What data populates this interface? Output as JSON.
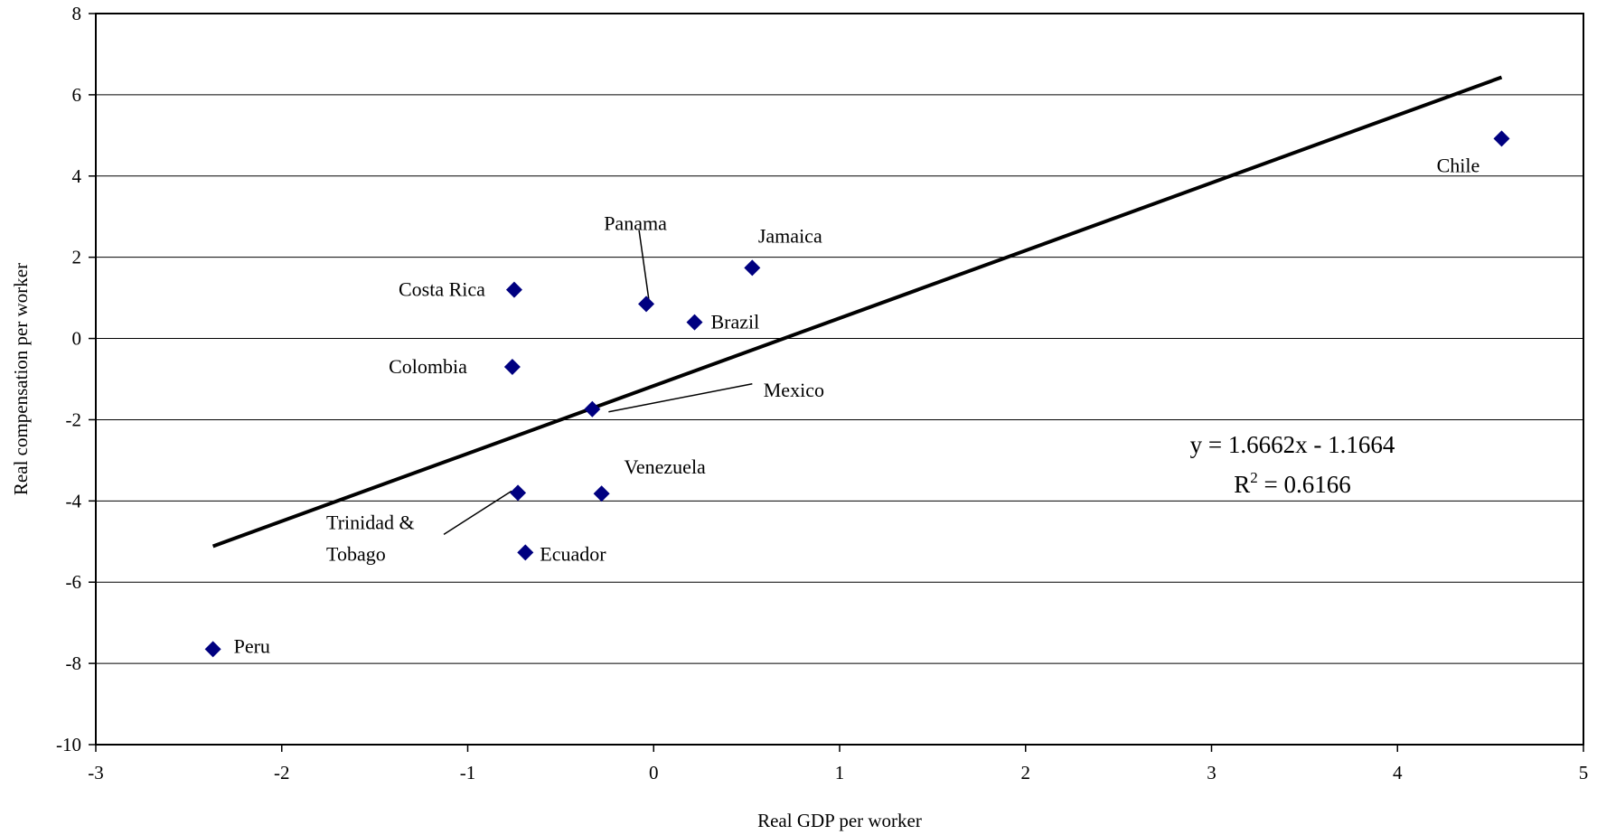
{
  "chart_data": {
    "type": "scatter",
    "title": "",
    "xlabel": "Real GDP per worker",
    "ylabel": "Real compensation per worker",
    "xlim": [
      -3,
      5
    ],
    "ylim": [
      -10,
      8
    ],
    "xticks": [
      -3,
      -2,
      -1,
      0,
      1,
      2,
      3,
      4,
      5
    ],
    "yticks": [
      -10,
      -8,
      -6,
      -4,
      -2,
      0,
      2,
      4,
      6,
      8
    ],
    "grid": "horizontal",
    "marker_color": "#000080",
    "points": [
      {
        "label": "Chile",
        "x": 4.56,
        "y": 4.92
      },
      {
        "label": "Jamaica",
        "x": 0.53,
        "y": 1.74
      },
      {
        "label": "Panama",
        "x": -0.04,
        "y": 0.85
      },
      {
        "label": "Brazil",
        "x": 0.22,
        "y": 0.4
      },
      {
        "label": "Costa Rica",
        "x": -0.75,
        "y": 1.2
      },
      {
        "label": "Colombia",
        "x": -0.76,
        "y": -0.7
      },
      {
        "label": "Mexico",
        "x": -0.33,
        "y": -1.74
      },
      {
        "label": "Venezuela",
        "x": -0.28,
        "y": -3.82
      },
      {
        "label": "Trinidad & Tobago",
        "x": -0.73,
        "y": -3.8
      },
      {
        "label": "Ecuador",
        "x": -0.69,
        "y": -5.27
      },
      {
        "label": "Peru",
        "x": -2.37,
        "y": -7.65
      }
    ],
    "trendline": {
      "slope": 1.6662,
      "intercept": -1.1664,
      "x_range": [
        -2.37,
        4.56
      ],
      "equation": "y = 1.6662x - 1.1664",
      "r2_prefix": "R",
      "r2_exp": "2",
      "r2_value": " = 0.6166"
    }
  }
}
